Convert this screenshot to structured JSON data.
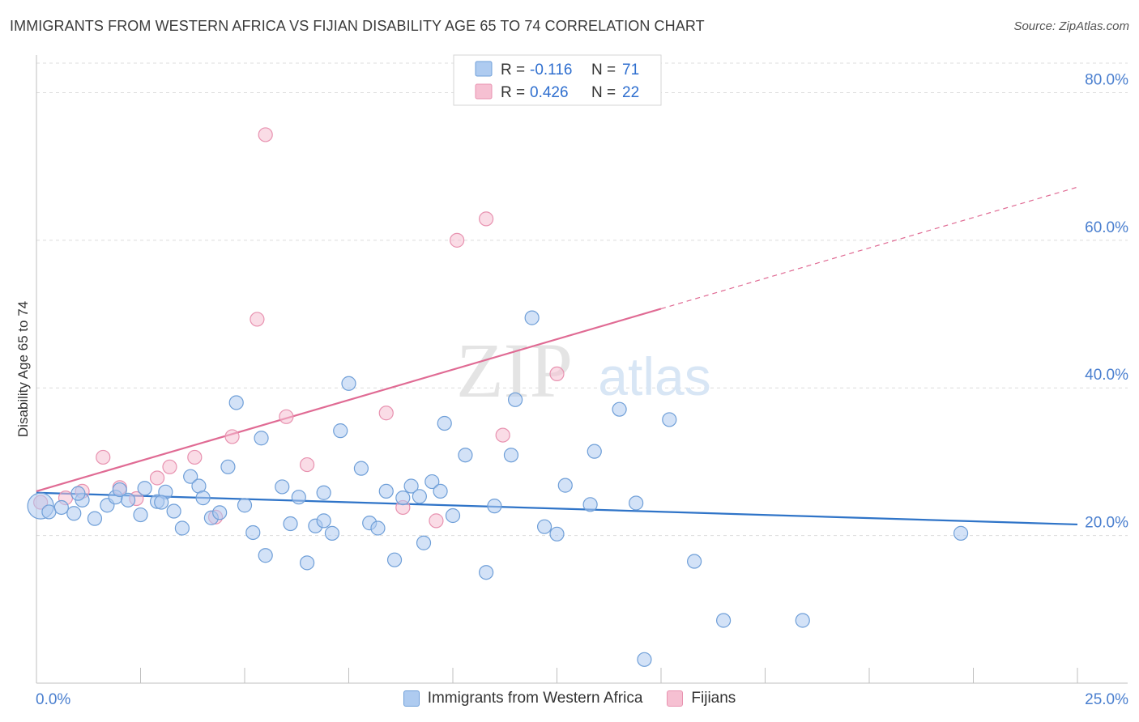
{
  "title": "IMMIGRANTS FROM WESTERN AFRICA VS FIJIAN DISABILITY AGE 65 TO 74 CORRELATION CHART",
  "source": "Source: ZipAtlas.com",
  "watermark": {
    "zip": "ZIP",
    "atlas": "atlas"
  },
  "colors": {
    "blue_fill": "#aecbf0",
    "blue_stroke": "#6f9fd8",
    "blue_line": "#2f74c8",
    "pink_fill": "#f6c0d2",
    "pink_stroke": "#e892b0",
    "pink_line": "#e06b94",
    "tick_label": "#4a7fcf"
  },
  "legend_top": {
    "rows": [
      {
        "r_label": "R =",
        "r_value": "-0.116",
        "n_label": "N =",
        "n_value": "71"
      },
      {
        "r_label": "R =",
        "r_value": "0.426",
        "n_label": "N =",
        "n_value": "22"
      }
    ]
  },
  "chart_data": {
    "type": "scatter",
    "title": "IMMIGRANTS FROM WESTERN AFRICA VS FIJIAN DISABILITY AGE 65 TO 74 CORRELATION CHART",
    "xlabel": "",
    "ylabel": "Disability Age 65 to 74",
    "xlim": [
      0,
      25
    ],
    "ylim": [
      0,
      84
    ],
    "x_tick_labels": [
      "0.0%",
      "25.0%"
    ],
    "y_ticks": [
      20,
      40,
      60,
      80
    ],
    "y_tick_labels": [
      "20.0%",
      "40.0%",
      "60.0%",
      "80.0%"
    ],
    "grid": true,
    "legend_position": "top-center",
    "series": [
      {
        "name": "Immigrants from Western Africa",
        "r": -0.116,
        "n": 71,
        "trend": {
          "x": [
            0,
            25
          ],
          "y": [
            25.8,
            21.5
          ],
          "solid_until": 25
        },
        "points": [
          [
            0.1,
            24.0
          ],
          [
            0.3,
            23.2
          ],
          [
            0.6,
            23.8
          ],
          [
            0.9,
            23.0
          ],
          [
            1.1,
            24.8
          ],
          [
            1.0,
            25.7
          ],
          [
            1.4,
            22.3
          ],
          [
            1.7,
            24.1
          ],
          [
            1.9,
            25.2
          ],
          [
            2.0,
            26.2
          ],
          [
            2.2,
            24.8
          ],
          [
            2.5,
            22.8
          ],
          [
            2.6,
            26.4
          ],
          [
            2.9,
            24.6
          ],
          [
            3.1,
            25.9
          ],
          [
            3.3,
            23.3
          ],
          [
            3.5,
            21.0
          ],
          [
            3.7,
            28.0
          ],
          [
            3.9,
            26.7
          ],
          [
            4.0,
            25.1
          ],
          [
            4.2,
            22.4
          ],
          [
            4.4,
            23.1
          ],
          [
            4.6,
            29.3
          ],
          [
            4.8,
            38.0
          ],
          [
            5.0,
            24.1
          ],
          [
            5.2,
            20.4
          ],
          [
            5.4,
            33.2
          ],
          [
            5.5,
            17.3
          ],
          [
            5.9,
            26.6
          ],
          [
            6.1,
            21.6
          ],
          [
            6.3,
            25.2
          ],
          [
            6.5,
            16.3
          ],
          [
            6.7,
            21.3
          ],
          [
            6.9,
            22.0
          ],
          [
            7.1,
            20.3
          ],
          [
            7.3,
            34.2
          ],
          [
            7.5,
            40.6
          ],
          [
            7.8,
            29.1
          ],
          [
            8.0,
            21.7
          ],
          [
            8.2,
            21.0
          ],
          [
            8.4,
            26.0
          ],
          [
            8.6,
            16.7
          ],
          [
            8.8,
            25.1
          ],
          [
            9.0,
            26.7
          ],
          [
            9.2,
            25.3
          ],
          [
            9.3,
            19.0
          ],
          [
            9.5,
            27.3
          ],
          [
            9.7,
            26.0
          ],
          [
            9.8,
            35.2
          ],
          [
            10.0,
            22.7
          ],
          [
            10.3,
            30.9
          ],
          [
            10.8,
            15.0
          ],
          [
            11.0,
            24.0
          ],
          [
            11.4,
            30.9
          ],
          [
            11.5,
            38.4
          ],
          [
            11.9,
            49.5
          ],
          [
            12.2,
            21.2
          ],
          [
            12.5,
            20.2
          ],
          [
            12.7,
            26.8
          ],
          [
            13.3,
            24.2
          ],
          [
            13.4,
            31.4
          ],
          [
            14.0,
            37.1
          ],
          [
            15.2,
            35.7
          ],
          [
            15.8,
            16.5
          ],
          [
            16.5,
            8.5
          ],
          [
            18.4,
            8.5
          ],
          [
            22.2,
            20.3
          ],
          [
            14.4,
            24.4
          ],
          [
            6.9,
            25.8
          ],
          [
            3.0,
            24.5
          ],
          [
            14.6,
            3.2
          ]
        ]
      },
      {
        "name": "Fijians",
        "r": 0.426,
        "n": 22,
        "trend": {
          "x": [
            0,
            25
          ],
          "y": [
            26.0,
            67.2
          ],
          "solid_until": 15
        },
        "points": [
          [
            0.1,
            24.5
          ],
          [
            0.7,
            25.1
          ],
          [
            1.1,
            26.0
          ],
          [
            1.6,
            30.6
          ],
          [
            2.0,
            26.5
          ],
          [
            2.4,
            25.0
          ],
          [
            2.9,
            27.8
          ],
          [
            3.2,
            29.3
          ],
          [
            3.8,
            30.6
          ],
          [
            4.3,
            22.5
          ],
          [
            4.7,
            33.4
          ],
          [
            5.3,
            49.3
          ],
          [
            5.5,
            74.3
          ],
          [
            6.0,
            36.1
          ],
          [
            6.5,
            29.6
          ],
          [
            8.4,
            36.6
          ],
          [
            8.8,
            23.8
          ],
          [
            9.6,
            22.0
          ],
          [
            10.1,
            60.0
          ],
          [
            10.8,
            62.9
          ],
          [
            11.2,
            33.6
          ],
          [
            12.5,
            41.9
          ]
        ]
      }
    ]
  }
}
